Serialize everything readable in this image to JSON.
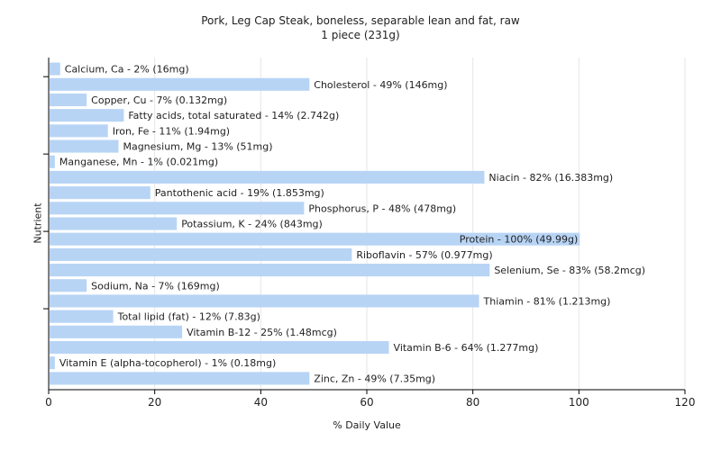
{
  "chart_data": {
    "type": "bar",
    "orientation": "horizontal",
    "title": "Pork, Leg Cap Steak, boneless, separable lean and fat, raw",
    "subtitle": "1 piece (231g)",
    "xlabel": "% Daily Value",
    "ylabel": "Nutrient",
    "xlim": [
      0,
      120
    ],
    "xticks": [
      0,
      20,
      40,
      60,
      80,
      100,
      120
    ],
    "grid": true,
    "bar_color": "#b8d4f5",
    "categories": [
      "Calcium, Ca",
      "Cholesterol",
      "Copper, Cu",
      "Fatty acids, total saturated",
      "Iron, Fe",
      "Magnesium, Mg",
      "Manganese, Mn",
      "Niacin",
      "Pantothenic acid",
      "Phosphorus, P",
      "Potassium, K",
      "Protein",
      "Riboflavin",
      "Selenium, Se",
      "Sodium, Na",
      "Thiamin",
      "Total lipid (fat)",
      "Vitamin B-12",
      "Vitamin B-6",
      "Vitamin E (alpha-tocopherol)",
      "Zinc, Zn"
    ],
    "values": [
      2,
      49,
      7,
      14,
      11,
      13,
      1,
      82,
      19,
      48,
      24,
      100,
      57,
      83,
      7,
      81,
      12,
      25,
      64,
      1,
      49
    ],
    "labels": [
      "Calcium, Ca - 2% (16mg)",
      "Cholesterol - 49% (146mg)",
      "Copper, Cu - 7% (0.132mg)",
      "Fatty acids, total saturated - 14% (2.742g)",
      "Iron, Fe - 11% (1.94mg)",
      "Magnesium, Mg - 13% (51mg)",
      "Manganese, Mn - 1% (0.021mg)",
      "Niacin - 82% (16.383mg)",
      "Pantothenic acid - 19% (1.853mg)",
      "Phosphorus, P - 48% (478mg)",
      "Potassium, K - 24% (843mg)",
      "Protein - 100% (49.99g)",
      "Riboflavin - 57% (0.977mg)",
      "Selenium, Se - 83% (58.2mcg)",
      "Sodium, Na - 7% (169mg)",
      "Thiamin - 81% (1.213mg)",
      "Total lipid (fat) - 12% (7.83g)",
      "Vitamin B-12 - 25% (1.48mcg)",
      "Vitamin B-6 - 64% (1.277mg)",
      "Vitamin E (alpha-tocopherol) - 1% (0.18mg)",
      "Zinc, Zn - 49% (7.35mg)"
    ]
  }
}
